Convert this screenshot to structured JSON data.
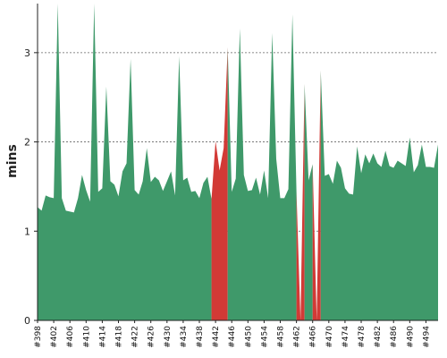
{
  "chart_data": {
    "type": "area",
    "title": "",
    "xlabel": "",
    "ylabel": "mins",
    "ylim": [
      0,
      3.55
    ],
    "yticks": [
      0,
      1,
      2,
      3
    ],
    "grid": true,
    "colors": {
      "normal": "#3f996a",
      "failed": "#d23a36",
      "grid": "#666666",
      "axis": "#222222"
    },
    "x_start": 398,
    "x_tick_labels": [
      "#398",
      "#402",
      "#406",
      "#410",
      "#414",
      "#418",
      "#422",
      "#426",
      "#430",
      "#434",
      "#438",
      "#442",
      "#446",
      "#450",
      "#454",
      "#458",
      "#462",
      "#466",
      "#470",
      "#474",
      "#478",
      "#482",
      "#486",
      "#490",
      "#494"
    ],
    "series": [
      {
        "values": [
          1.27,
          1.23,
          1.4,
          1.38,
          1.37,
          3.55,
          1.37,
          1.23,
          1.22,
          1.21,
          1.37,
          1.63,
          1.46,
          1.33,
          3.55,
          1.44,
          1.48,
          2.62,
          1.56,
          1.52,
          1.39,
          1.67,
          1.76,
          2.93,
          1.46,
          1.41,
          1.56,
          1.93,
          1.55,
          1.61,
          1.57,
          1.45,
          1.56,
          1.67,
          1.4,
          2.96,
          1.57,
          1.6,
          1.44,
          1.45,
          1.37,
          1.54,
          1.61,
          1.36,
          2.01,
          1.68,
          1.93,
          3.06,
          1.44,
          1.59,
          3.27,
          1.63,
          1.45,
          1.46,
          1.6,
          1.41,
          1.68,
          1.37,
          3.22,
          1.81,
          1.37,
          1.37,
          1.47,
          3.43,
          1.44,
          0.0,
          2.65,
          1.57,
          1.75,
          0.0,
          2.8,
          1.62,
          1.64,
          1.53,
          1.79,
          1.71,
          1.48,
          1.42,
          1.41,
          1.95,
          1.65,
          1.86,
          1.76,
          1.87,
          1.76,
          1.72,
          1.9,
          1.73,
          1.71,
          1.79,
          1.76,
          1.73,
          2.05,
          1.66,
          1.74,
          1.97,
          1.72,
          1.72,
          1.71,
          1.97
        ],
        "failed_builds": [
          442,
          443,
          444,
          463,
          467
        ]
      }
    ]
  }
}
